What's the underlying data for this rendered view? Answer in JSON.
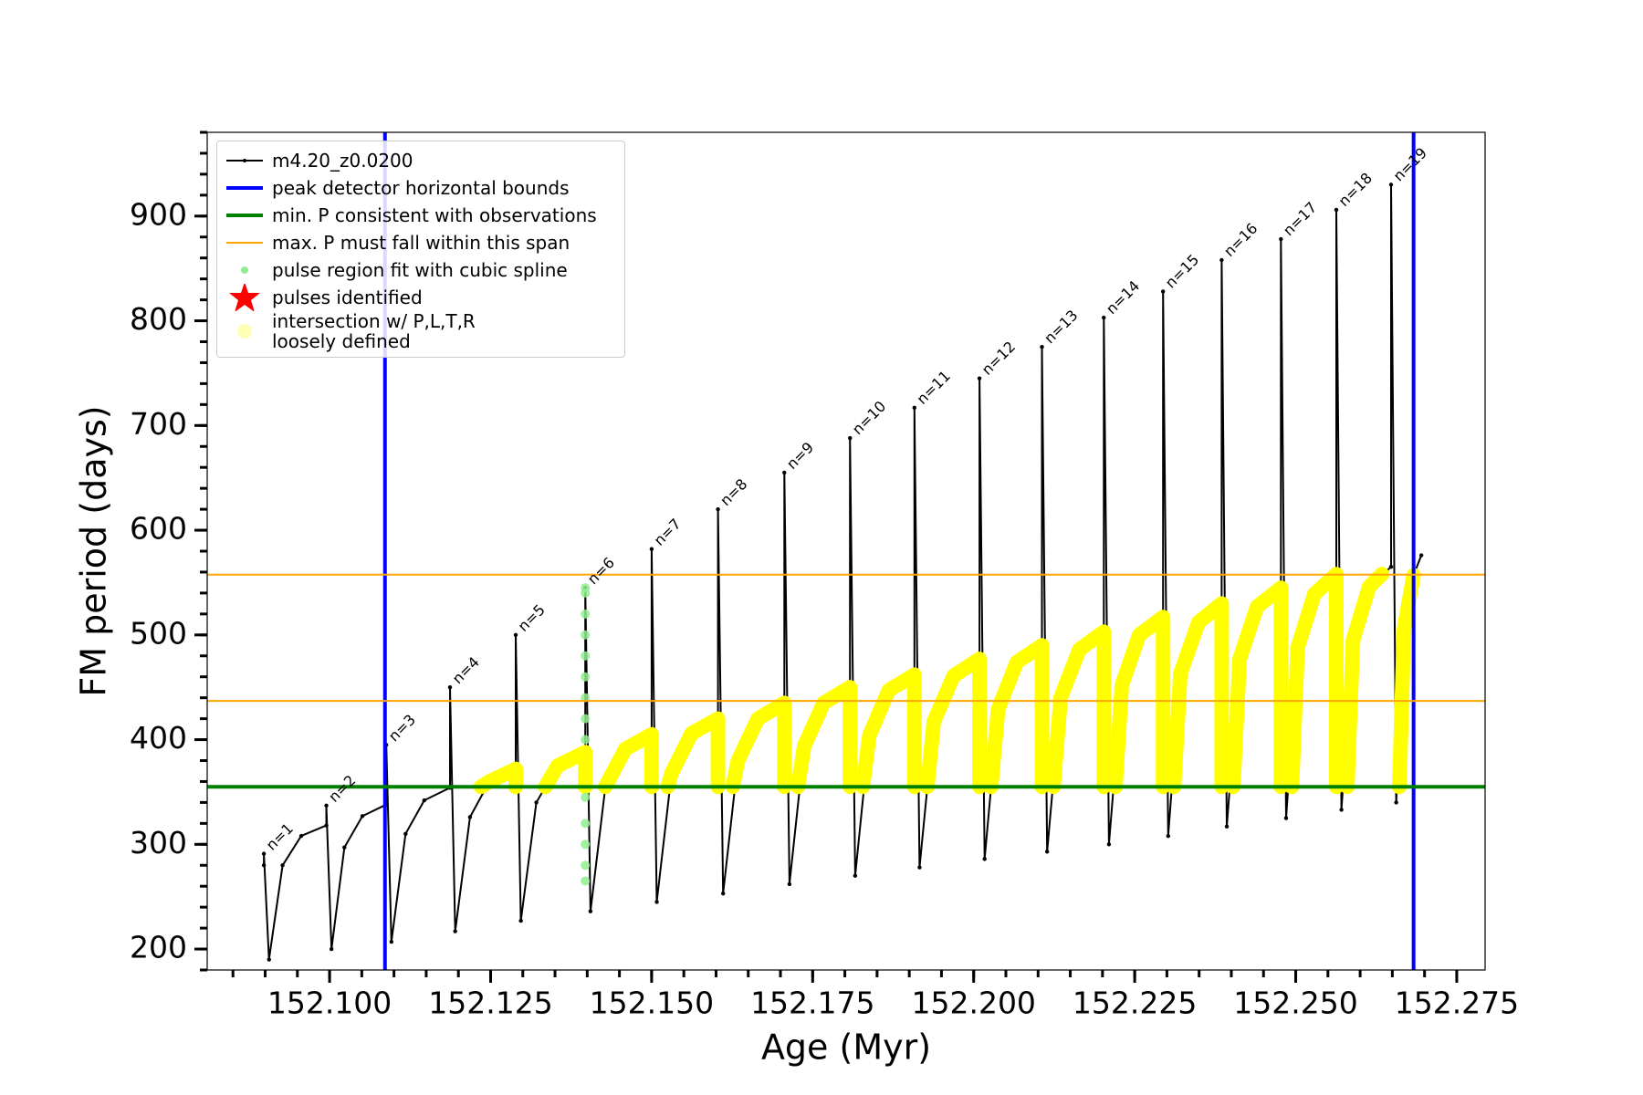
{
  "chart_data": {
    "type": "line",
    "xlabel": "Age (Myr)",
    "ylabel": "FM period (days)",
    "xlim": [
      152.081,
      152.2794
    ],
    "ylim": [
      180,
      980
    ],
    "xticks": [
      {
        "value": 152.1,
        "label": "152.100"
      },
      152.125,
      {
        "value": 152.15,
        "label": "152.150"
      },
      152.175,
      {
        "value": 152.2,
        "label": "152.200"
      },
      152.225,
      {
        "value": 152.25,
        "label": "152.250"
      },
      152.275
    ],
    "yticks": [
      200,
      300,
      400,
      500,
      600,
      700,
      800,
      900
    ],
    "pulse_labels": [
      "n=1",
      "n=2",
      "n=3",
      "n=4",
      "n=5",
      "n=6",
      "n=7",
      "n=8",
      "n=9",
      "n=10",
      "n=11",
      "n=12",
      "n=13",
      "n=14",
      "n=15",
      "n=16",
      "n=17",
      "n=18",
      "n=19"
    ],
    "series": [
      {
        "name": "m4.20_z0.0200",
        "type": "line",
        "color": "#000000",
        "x": [
          152.0898,
          152.0898,
          152.0906,
          152.0927,
          152.0956,
          152.0995,
          152.0995,
          152.1003,
          152.1023,
          152.1051,
          152.1088,
          152.1088,
          152.1096,
          152.1118,
          152.1147,
          152.1187,
          152.1187,
          152.1195,
          152.1218,
          152.1248,
          152.1289,
          152.1289,
          152.1297,
          152.1321,
          152.1354,
          152.1397,
          152.1397,
          152.1405,
          152.1428,
          152.1459,
          152.15,
          152.15,
          152.1508,
          152.1531,
          152.1562,
          152.1603,
          152.1603,
          152.1611,
          152.1634,
          152.1665,
          152.1706,
          152.1706,
          152.1714,
          152.1737,
          152.1767,
          152.1808,
          152.1808,
          152.1816,
          152.1838,
          152.1868,
          152.1908,
          152.1908,
          152.1916,
          152.1938,
          152.1969,
          152.2009,
          152.2009,
          152.2017,
          152.2038,
          152.2067,
          152.2106,
          152.2106,
          152.2114,
          152.2135,
          152.2164,
          152.2202,
          152.2202,
          152.221,
          152.223,
          152.2257,
          152.2294,
          152.2294,
          152.2302,
          152.2321,
          152.2349,
          152.2385,
          152.2385,
          152.2393,
          152.2413,
          152.244,
          152.2477,
          152.2477,
          152.2485,
          152.2503,
          152.2529,
          152.2563,
          152.2563,
          152.2571,
          152.2589,
          152.2614,
          152.2648,
          152.2648,
          152.2656,
          152.2668,
          152.2683,
          152.2695
        ],
        "values": [
          280,
          291,
          190,
          280,
          308,
          318,
          337,
          200,
          297,
          327,
          338,
          395,
          207,
          310,
          342,
          354,
          450,
          217,
          326,
          360,
          372,
          500,
          227,
          340,
          375,
          388,
          545,
          236,
          354,
          391,
          405,
          582,
          245,
          368,
          406,
          420,
          620,
          253,
          380,
          420,
          435,
          655,
          262,
          394,
          435,
          450,
          688,
          270,
          404,
          447,
          462,
          717,
          278,
          417,
          461,
          477,
          745,
          286,
          429,
          474,
          490,
          775,
          293,
          440,
          486,
          503,
          803,
          300,
          452,
          500,
          517,
          828,
          308,
          463,
          512,
          530,
          858,
          317,
          477,
          527,
          545,
          878,
          325,
          488,
          539,
          558,
          906,
          333,
          495,
          546,
          565,
          930,
          340,
          505,
          557,
          576
        ]
      },
      {
        "name": "pulse region fit with cubic spline",
        "type": "scatter",
        "color": "#90ee90",
        "x": [
          152.1397,
          152.1397,
          152.1397,
          152.1397,
          152.1397,
          152.1397,
          152.1397,
          152.1397,
          152.1397,
          152.1397,
          152.1397,
          152.1397,
          152.1397,
          152.1397
        ],
        "values": [
          265,
          280,
          300,
          320,
          345,
          400,
          420,
          440,
          460,
          480,
          500,
          520,
          540,
          545
        ]
      },
      {
        "name": "pulses identified",
        "type": "star",
        "color": "#ff0000",
        "x": [],
        "values": []
      },
      {
        "name": "intersection w/ P,L,T,R\nloosely defined",
        "type": "band",
        "color": "#ffff00",
        "x": [
          152.1235,
          152.1248,
          152.1289,
          152.1289,
          null,
          152.1335,
          152.1354,
          152.1397,
          152.1397,
          null,
          152.1428,
          152.1459,
          152.15,
          152.15,
          null,
          152.1525,
          152.1531,
          152.1562,
          152.1603,
          152.1603,
          null,
          152.1626,
          152.1634,
          152.1665,
          152.1706,
          152.1706,
          null,
          152.1727,
          152.1737,
          152.1767,
          152.1808,
          152.1808,
          null,
          152.1828,
          152.1838,
          152.1868,
          152.1908,
          152.1908,
          null,
          152.1928,
          152.1938,
          152.1969,
          152.2009,
          152.2009,
          null,
          152.2027,
          152.2038,
          152.2067,
          152.2106,
          152.2106,
          null,
          152.2124,
          152.2135,
          152.2164,
          152.2202,
          152.2202,
          null,
          152.222,
          152.223,
          152.2257,
          152.2294,
          152.2294,
          null,
          152.2311,
          152.2321,
          152.2349,
          152.2385,
          152.2385,
          null,
          152.2403,
          152.2413,
          152.244,
          152.2477,
          152.2477,
          null,
          152.2494,
          152.2503,
          152.2529,
          152.2563,
          152.2563,
          null,
          152.258,
          152.2589,
          152.2614,
          152.2634,
          null,
          152.2661,
          152.2668,
          152.2683
        ],
        "values": [
          355,
          360,
          372,
          355,
          null,
          355,
          375,
          388,
          355,
          null,
          355,
          391,
          405,
          355,
          null,
          355,
          368,
          406,
          420,
          355,
          null,
          355,
          380,
          420,
          435,
          355,
          null,
          355,
          394,
          435,
          450,
          355,
          null,
          355,
          404,
          447,
          462,
          355,
          null,
          355,
          417,
          461,
          477,
          355,
          null,
          355,
          429,
          474,
          490,
          355,
          null,
          355,
          440,
          486,
          503,
          355,
          null,
          355,
          452,
          500,
          517,
          355,
          null,
          355,
          463,
          512,
          530,
          355,
          null,
          355,
          477,
          527,
          545,
          355,
          null,
          355,
          488,
          539,
          558,
          355,
          null,
          355,
          495,
          546,
          558,
          null,
          355,
          505,
          557
        ]
      }
    ],
    "reference_lines": [
      {
        "name": "peak detector horizontal bounds",
        "orientation": "vertical",
        "color": "#0000ff",
        "values": [
          152.1086,
          152.2683
        ]
      },
      {
        "name": "min. P consistent with observations",
        "orientation": "horizontal",
        "color": "#008000",
        "values": [
          355
        ]
      },
      {
        "name": "max. P must fall within this span",
        "orientation": "horizontal",
        "color": "#ffa500",
        "values": [
          437,
          557.6
        ]
      }
    ]
  }
}
